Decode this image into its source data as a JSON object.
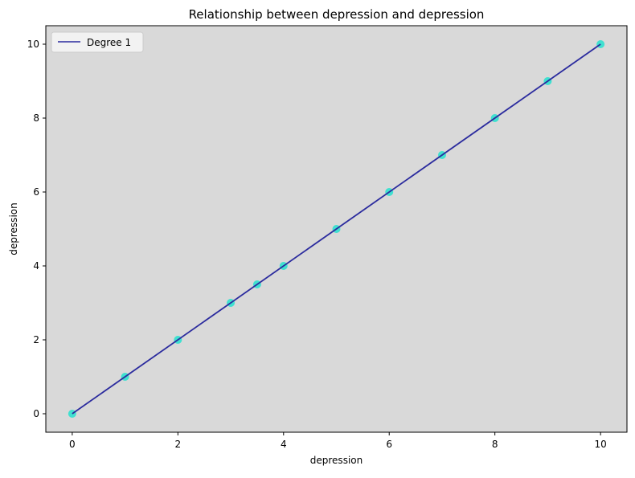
{
  "chart_data": {
    "type": "scatter",
    "title": "Relationship between depression and depression",
    "xlabel": "depression",
    "ylabel": "depression",
    "xlim": [
      -0.5,
      10.5
    ],
    "ylim": [
      -0.5,
      10.5
    ],
    "xticks": [
      0,
      2,
      4,
      6,
      8,
      10
    ],
    "yticks": [
      0,
      2,
      4,
      6,
      8,
      10
    ],
    "grid": false,
    "legend_position": "upper-left",
    "background_color": "#d9d9d9",
    "point_color": "#40e0d0",
    "line_color": "#2b2b9e",
    "points": {
      "x": [
        0,
        1,
        2,
        3,
        3.5,
        4,
        5,
        6,
        7,
        8,
        9,
        10
      ],
      "y": [
        0,
        1,
        2,
        3,
        3.5,
        4,
        5,
        6,
        7,
        8,
        9,
        10
      ]
    },
    "fit": {
      "name": "Degree 1",
      "degree": 1,
      "x": [
        0,
        10
      ],
      "y": [
        0,
        10
      ]
    }
  }
}
